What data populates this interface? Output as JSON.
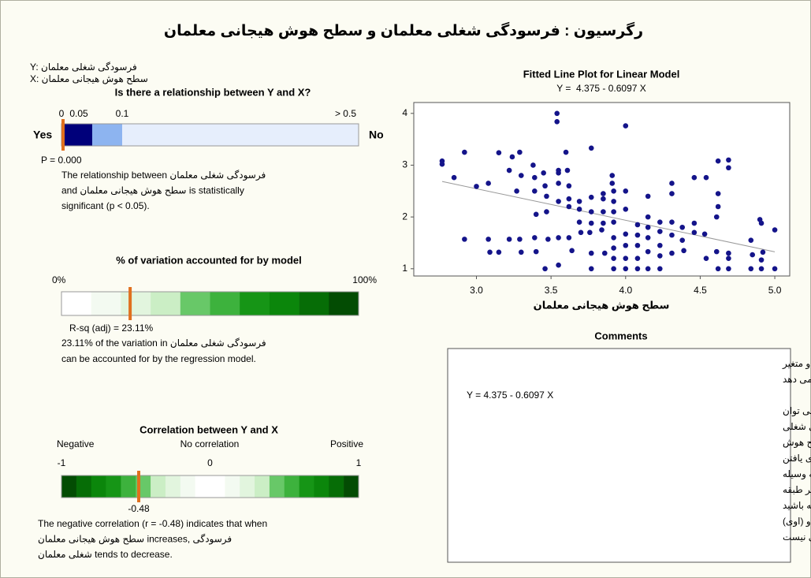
{
  "header": {
    "title": "رگرسیون : فرسودگی شغلی معلمان و سطح هوش هیجانی معلمان",
    "y_var": "Y: فرسودگی شغلی معلمان",
    "x_var": "X: سطح هوش هیجانی معلمان"
  },
  "relationship": {
    "title": "Is there a relationship between Y and X?",
    "ticks": [
      0,
      0.05,
      0.1,
      {
        "value": 0.5,
        "label": "> 0.5"
      }
    ],
    "yes": "Yes",
    "no": "No",
    "p_value": 0,
    "p_label": "P = 0.000",
    "text": [
      "The relationship between فرسودگی شغلی معلمان",
      "and سطح هوش هیجانی معلمان is statistically",
      "significant (p < 0.05)."
    ]
  },
  "rsq": {
    "title": "% of variation accounted for by model",
    "ticks": [
      {
        "value": 0,
        "label": "0%"
      },
      {
        "value": 100,
        "label": "100%"
      }
    ],
    "value": 23.11,
    "value_label": "R-sq (adj) = 23.11%",
    "text": [
      "23.11% of the variation in فرسودگی شغلی معلمان",
      "can be accounted for by the regression model."
    ]
  },
  "correlation": {
    "title": "Correlation between Y and X",
    "headers": [
      "Negative",
      "No correlation",
      "Positive"
    ],
    "ticks": [
      -1,
      0,
      1
    ],
    "value": -0.48,
    "text": [
      "The negative correlation (r = -0.48) indicates that when",
      "سطح هوش هیجانی معلمان increases, فرسودگی",
      "شغلی معلمان tends to decrease."
    ]
  },
  "chart_data": {
    "type": "scatter",
    "title": "Fitted Line Plot for Linear Model",
    "subtitle": "Y =  4.375 - 0.6097 X",
    "x_label": "سطح هوش هیجانی معلمان",
    "xlim": [
      2.58,
      5.1
    ],
    "ylim": [
      0.86,
      4.21
    ],
    "xticks": [
      {
        "value": 3,
        "label": "3.0"
      },
      3.5,
      {
        "value": 4,
        "label": "4.0"
      },
      4.5,
      {
        "value": 5,
        "label": "5.0"
      }
    ],
    "yticks": [
      1,
      2,
      3,
      4
    ],
    "color": "#14148a",
    "line_color": "#999999",
    "fit_line": {
      "x": [
        2.77,
        5.0
      ],
      "y": [
        2.686,
        1.327
      ]
    },
    "x": [
      2.77,
      2.77,
      2.92,
      2.92,
      2.85,
      3.0,
      3.08,
      3.08,
      3.09,
      3.15,
      3.15,
      3.22,
      3.22,
      3.24,
      3.29,
      3.27,
      3.29,
      3.3,
      3.3,
      3.38,
      3.39,
      3.39,
      3.39,
      3.4,
      3.4,
      3.45,
      3.46,
      3.47,
      3.47,
      3.48,
      3.46,
      3.54,
      3.54,
      3.55,
      3.55,
      3.55,
      3.55,
      3.55,
      3.55,
      3.6,
      3.61,
      3.62,
      3.62,
      3.62,
      3.62,
      3.64,
      3.69,
      3.69,
      3.69,
      3.7,
      3.76,
      3.77,
      3.77,
      3.77,
      3.77,
      3.77,
      3.77,
      3.85,
      3.85,
      3.85,
      3.85,
      3.84,
      3.86,
      3.91,
      3.91,
      3.92,
      3.92,
      3.92,
      3.92,
      3.92,
      3.92,
      3.92,
      3.92,
      4.0,
      4.0,
      4.0,
      4.0,
      4.0,
      4.0,
      4.0,
      4.08,
      4.08,
      4.08,
      4.08,
      4.08,
      4.15,
      4.15,
      4.15,
      4.15,
      4.15,
      4.15,
      4.23,
      4.23,
      4.23,
      4.23,
      4.23,
      4.31,
      4.31,
      4.31,
      4.31,
      4.31,
      4.38,
      4.38,
      4.39,
      4.46,
      4.46,
      4.46,
      4.54,
      4.53,
      4.54,
      4.62,
      4.62,
      4.62,
      4.61,
      4.61,
      4.62,
      4.69,
      4.69,
      4.69,
      4.69,
      4.69,
      4.84,
      4.85,
      4.84,
      4.9,
      4.91,
      4.92,
      4.91,
      4.91,
      5.0,
      5.0
    ],
    "y": [
      3.08,
      3.02,
      3.25,
      1.57,
      2.76,
      2.59,
      2.65,
      1.57,
      1.32,
      1.32,
      3.24,
      1.57,
      2.9,
      3.16,
      3.25,
      2.5,
      1.57,
      1.32,
      2.8,
      3.0,
      2.76,
      2.5,
      1.6,
      1.33,
      2.05,
      2.85,
      2.6,
      2.4,
      2.1,
      1.57,
      1.0,
      4.0,
      3.84,
      2.9,
      2.85,
      2.65,
      2.3,
      1.6,
      1.07,
      3.25,
      2.9,
      2.6,
      2.35,
      2.2,
      1.6,
      1.35,
      2.3,
      2.15,
      1.9,
      1.7,
      1.7,
      3.33,
      2.38,
      2.1,
      1.88,
      1.3,
      1.0,
      2.45,
      2.35,
      2.1,
      1.88,
      1.75,
      1.3,
      2.8,
      2.65,
      2.5,
      2.3,
      2.1,
      1.9,
      1.6,
      1.4,
      1.2,
      1.0,
      3.76,
      2.5,
      2.15,
      1.67,
      1.45,
      1.2,
      1.0,
      1.85,
      1.65,
      1.45,
      1.2,
      1.0,
      2.4,
      2.0,
      1.8,
      1.6,
      1.33,
      1.0,
      1.9,
      1.72,
      1.45,
      1.25,
      1.0,
      2.65,
      2.45,
      1.9,
      1.65,
      1.3,
      1.8,
      1.55,
      1.35,
      2.76,
      1.88,
      1.7,
      2.76,
      1.67,
      1.2,
      3.08,
      2.45,
      2.2,
      2.0,
      1.33,
      1.0,
      3.1,
      2.95,
      1.3,
      1.2,
      1.0,
      1.55,
      1.27,
      1.0,
      1.95,
      1.88,
      1.32,
      1.17,
      1.0,
      1.75,
      1.0
    ]
  },
  "comments": {
    "title": "Comments",
    "lines": [
      "معادله مدل پارازش خطی زیر رابطه بین دو متغیر",
      "را نشان می دهد",
      "Y =  4.375 - 0.6097 X",
      "اگر مدل متناسب با داده باشد، این معادله را می توان",
      "برای پیش بینی مقدار متغیر فرسودگی شغلی",
      "معلمان به وسیله مقدار متغیر سطح هوش",
      "هیجانی معلمان استفاده کرد، و یا برای یافتن",
      "مقدار متغیر فرسودگی شغلی معلمان به وسیله",
      "مقدار متغیر سطح هوش هیجانی از نظر طبقه",
      "هیجانی معلمان استفاده کرد. توجه داشته باشید",
      "که وجود رابطه معنادار در هر دو نمودار (ساکن) و (اوی)",
      "به معنای وجود رابطه علی نیست"
    ]
  }
}
